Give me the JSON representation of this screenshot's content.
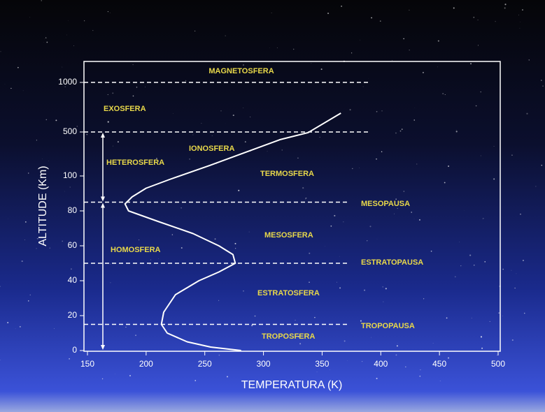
{
  "chart_data": {
    "type": "line",
    "x_label": "TEMPERATURA (K)",
    "y_label": "ALTITUDE (Km)",
    "xlim": [
      150,
      500
    ],
    "xticks": [
      150,
      200,
      250,
      300,
      350,
      400,
      450,
      500
    ],
    "ylim": [
      0,
      1000
    ],
    "yticks": [
      0,
      20,
      40,
      60,
      80,
      100,
      500,
      1000
    ],
    "series": [
      {
        "name": "Temperatura",
        "color": "#ffffff",
        "x": [
          281,
          255,
          235,
          218,
          213,
          215,
          225,
          245,
          262,
          276,
          274,
          262,
          240,
          210,
          185,
          182,
          188,
          200,
          220,
          254,
          314,
          338,
          366
        ],
        "values": [
          0,
          2,
          5,
          10,
          15,
          22,
          32,
          40,
          45,
          50,
          55,
          60,
          67,
          74,
          80,
          84,
          88,
          93,
          98,
          195,
          430,
          494,
          690
        ]
      }
    ],
    "reference_lines": [
      {
        "value": 1000,
        "label": "MAGNETOSFERA"
      },
      {
        "value": 500,
        "label": "EXOSFERA"
      },
      {
        "value": 85,
        "label": "MESOPAUSA"
      },
      {
        "value": 50,
        "label": "ESTRATOPAUSA"
      },
      {
        "value": 15,
        "label": "TROPOPAUSA"
      }
    ],
    "annotations": [
      "IONOSFERA",
      "HETEROSFERA",
      "TERMOSFERA",
      "MESOSFERA",
      "HOMOSFERA",
      "ESTRATOSFERA",
      "TROPOSFERA"
    ]
  }
}
